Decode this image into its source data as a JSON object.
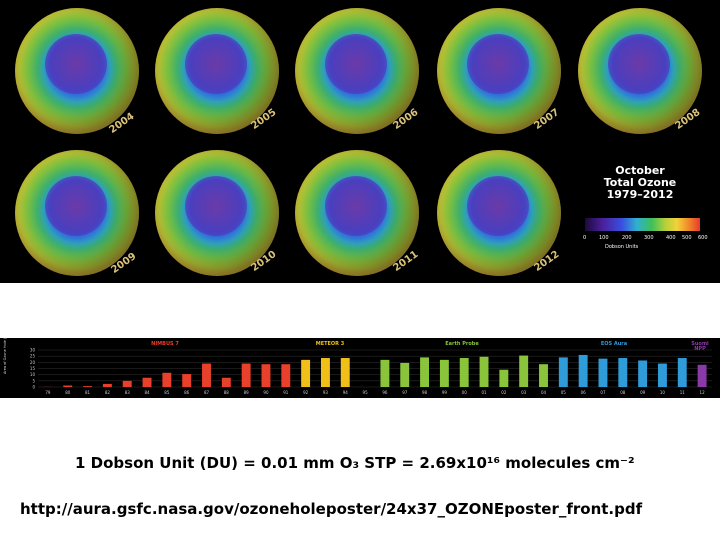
{
  "globes": [
    {
      "year": "2004"
    },
    {
      "year": "2005"
    },
    {
      "year": "2006"
    },
    {
      "year": "2007"
    },
    {
      "year": "2008"
    },
    {
      "year": "2009"
    },
    {
      "year": "2010"
    },
    {
      "year": "2011"
    },
    {
      "year": "2012"
    }
  ],
  "legend": {
    "title_line1": "October",
    "title_line2": "Total Ozone",
    "title_line3": "1979–2012",
    "ticks": [
      "0",
      "100",
      "200",
      "300",
      "400",
      "500",
      "600"
    ],
    "units": "Dobson Units"
  },
  "chart_data": {
    "type": "bar",
    "ylabel": "Area of Ozone Hole\n(million km²)",
    "ylim": [
      0,
      30
    ],
    "yticks": [
      "0",
      "5",
      "10",
      "15",
      "20",
      "25",
      "30"
    ],
    "categories": [
      "79",
      "80",
      "81",
      "82",
      "83",
      "84",
      "85",
      "86",
      "87",
      "88",
      "89",
      "90",
      "91",
      "92",
      "93",
      "94",
      "95",
      "96",
      "97",
      "98",
      "99",
      "00",
      "01",
      "02",
      "03",
      "04",
      "05",
      "06",
      "07",
      "08",
      "09",
      "10",
      "11",
      "12"
    ],
    "values": [
      0.1,
      1.2,
      0.7,
      2.5,
      5.0,
      7.5,
      11.5,
      10.5,
      19.0,
      7.5,
      19.0,
      18.5,
      18.5,
      22.0,
      23.5,
      23.5,
      0,
      22.0,
      19.5,
      24.0,
      22.0,
      23.5,
      24.5,
      14.0,
      25.5,
      18.5,
      24.0,
      26.0,
      23.0,
      23.5,
      21.5,
      19.0,
      23.5,
      18.0
    ],
    "colors": [
      "#e8402a",
      "#e8402a",
      "#e8402a",
      "#e8402a",
      "#e8402a",
      "#e8402a",
      "#e8402a",
      "#e8402a",
      "#e8402a",
      "#e8402a",
      "#e8402a",
      "#e8402a",
      "#e8402a",
      "#f0c018",
      "#f0c018",
      "#f0c018",
      "#f0c018",
      "#8ac43a",
      "#8ac43a",
      "#8ac43a",
      "#8ac43a",
      "#8ac43a",
      "#8ac43a",
      "#8ac43a",
      "#8ac43a",
      "#8ac43a",
      "#2f9bd8",
      "#2f9bd8",
      "#2f9bd8",
      "#2f9bd8",
      "#2f9bd8",
      "#2f9bd8",
      "#2f9bd8",
      "#8a3aa8"
    ],
    "missions": [
      {
        "name": "NIMBUS 7",
        "color": "#e8402a"
      },
      {
        "name": "METEOR 3",
        "color": "#f0c018"
      },
      {
        "name": "Earth Probe",
        "color": "#8ac43a"
      },
      {
        "name": "EOS Aura",
        "color": "#2f9bd8"
      },
      {
        "name": "Suomi\nNPP",
        "color": "#8a3aa8"
      }
    ]
  },
  "caption": "1 Dobson Unit (DU) = 0.01 mm O₃ STP = 2.69x10¹⁶ molecules cm⁻²",
  "url": "http://aura.gsfc.nasa.gov/ozoneholeposter/24x37_OZONEposter_front.pdf"
}
